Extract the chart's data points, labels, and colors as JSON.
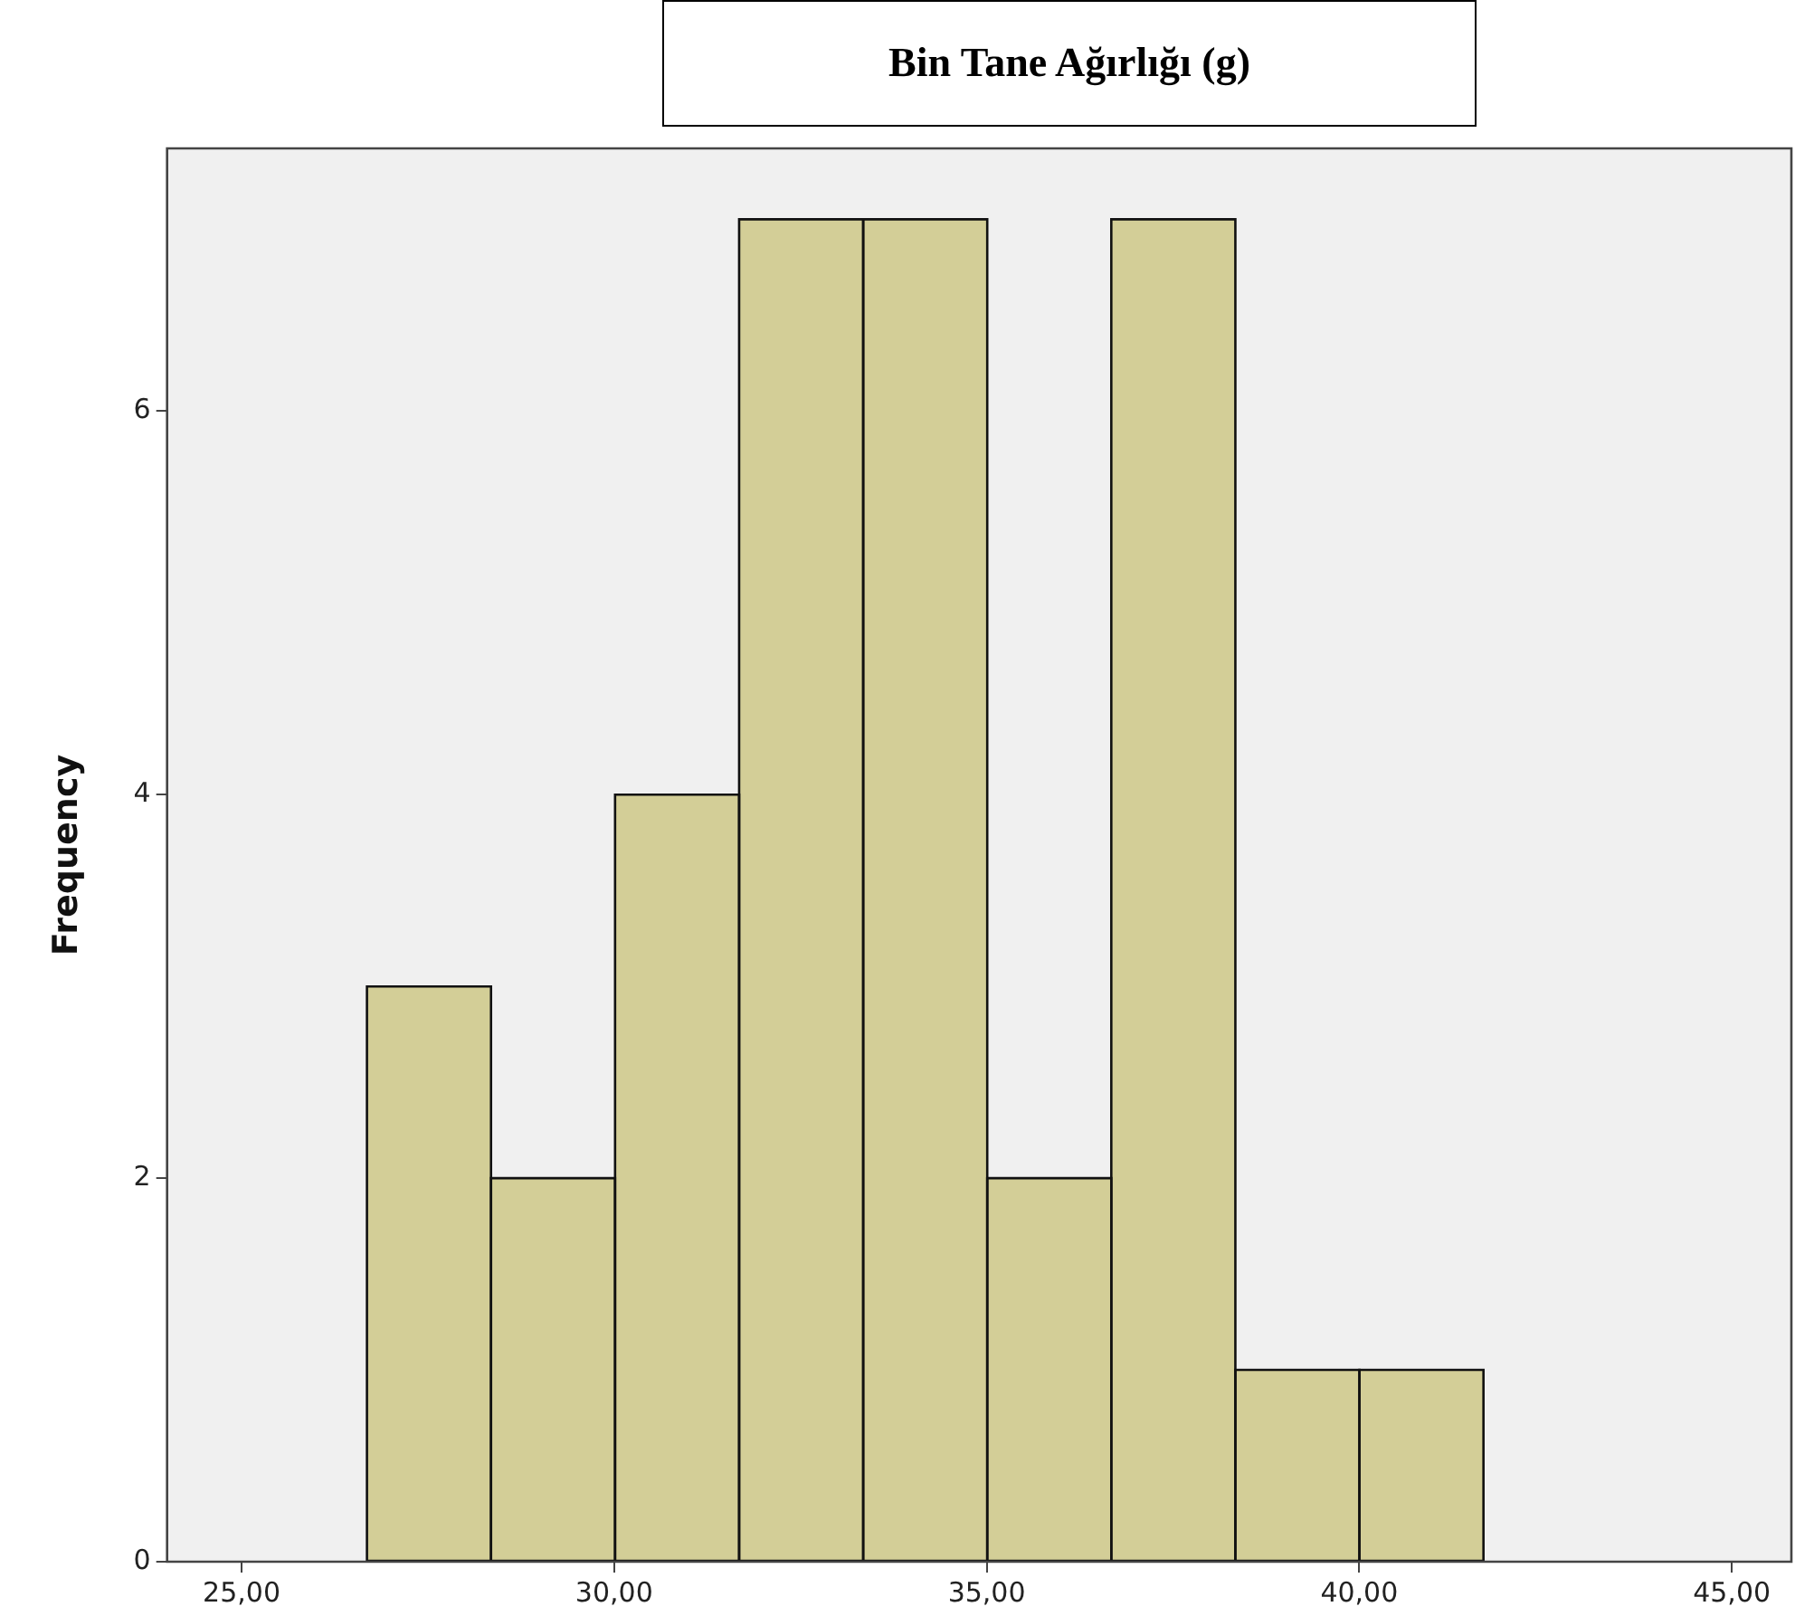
{
  "chart_data": {
    "type": "histogram",
    "title": "Bin Tane Ağırlığı (g)",
    "ylabel": "Frequency",
    "bins": [
      26.68,
      28.35,
      30.01,
      31.68,
      33.34,
      35.01,
      36.67,
      38.34,
      40.0,
      41.67
    ],
    "values": [
      3,
      2,
      4,
      7,
      7,
      2,
      7,
      1,
      1
    ],
    "color": "#d3ce97",
    "xlim": [
      24,
      45.8
    ],
    "xticks": [
      {
        "value": 25,
        "label": "25,00"
      },
      {
        "value": 30,
        "label": "30,00"
      },
      {
        "value": 35,
        "label": "35,00"
      },
      {
        "value": 40,
        "label": "40,00"
      },
      {
        "value": 45,
        "label": "45,00"
      }
    ],
    "ylim": [
      0,
      7.37
    ],
    "yticks": [
      0,
      2,
      4,
      6
    ],
    "grid": false,
    "legend": false
  }
}
